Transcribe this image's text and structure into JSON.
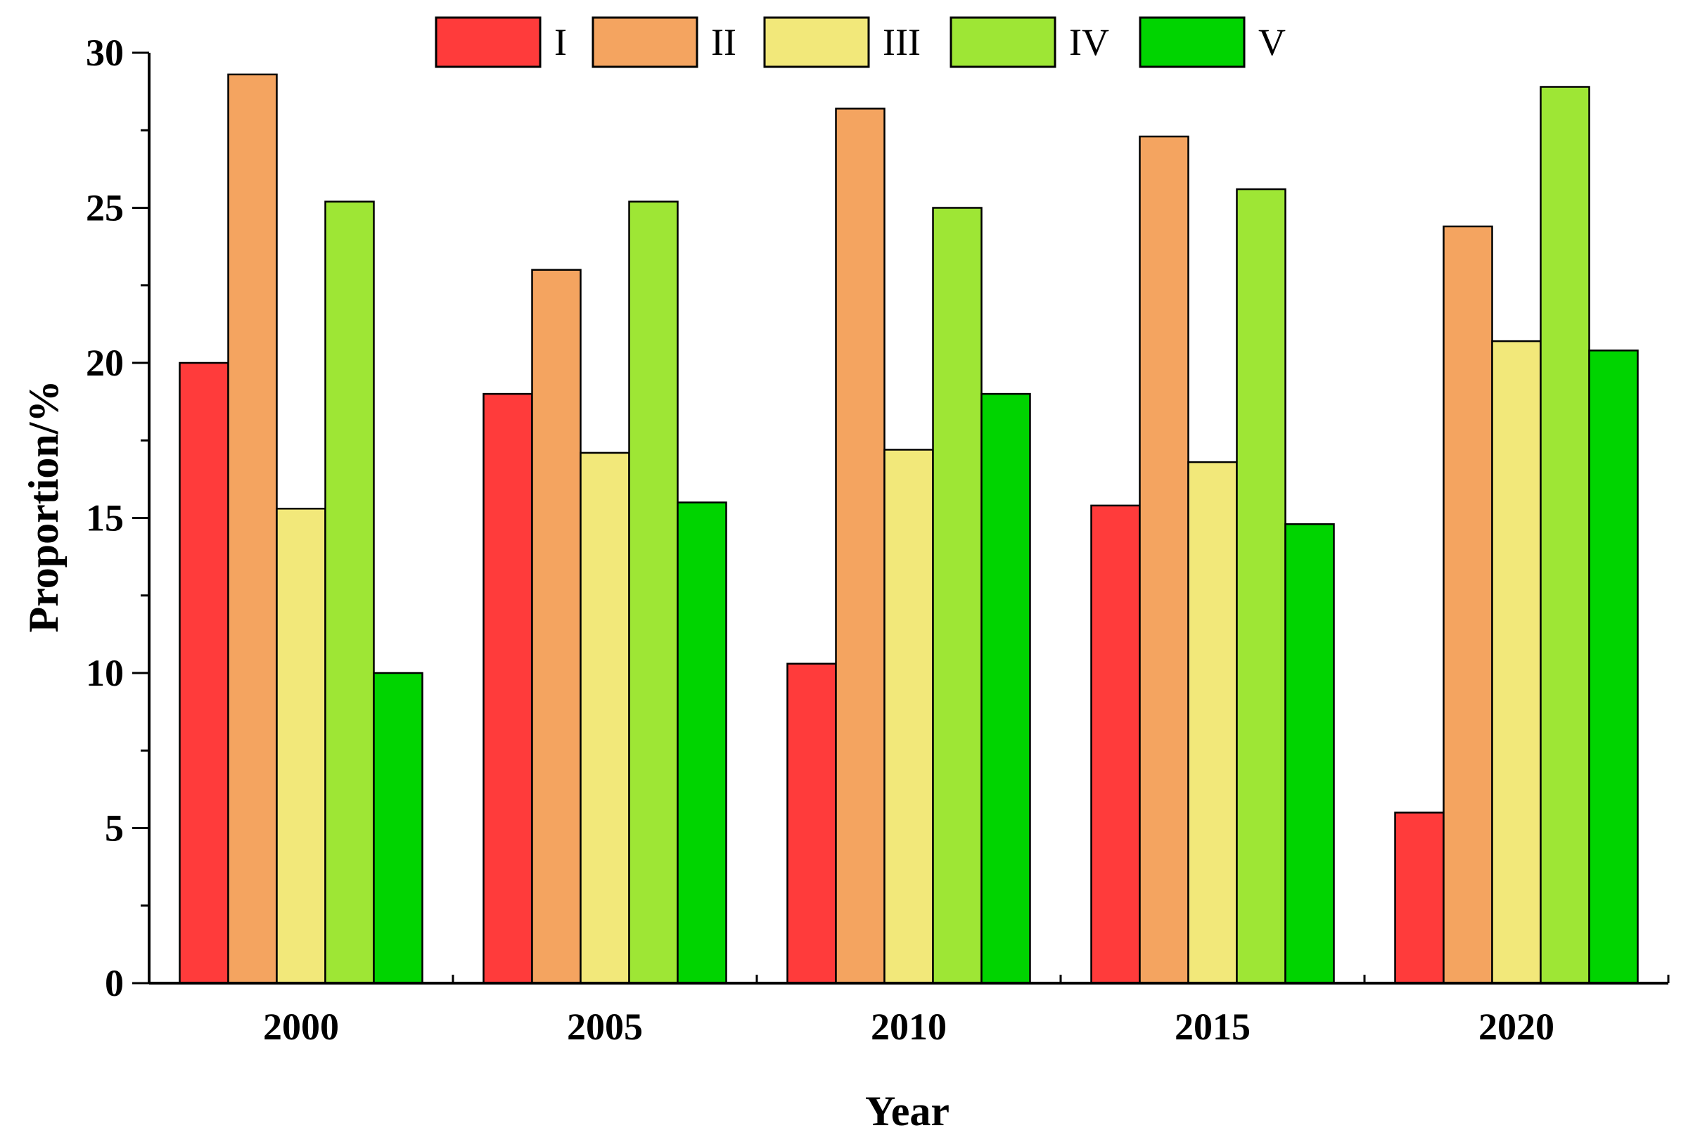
{
  "chart_data": {
    "type": "bar",
    "title": "",
    "xlabel": "Year",
    "ylabel": "Proportion/%",
    "ylim": [
      0,
      30
    ],
    "yticks": [
      0,
      5,
      10,
      15,
      20,
      25,
      30
    ],
    "categories": [
      "2000",
      "2005",
      "2010",
      "2015",
      "2020"
    ],
    "legend_position": "top",
    "series": [
      {
        "name": "I",
        "color": "#ff3b3b",
        "values": [
          20.0,
          19.0,
          10.3,
          15.4,
          5.5
        ]
      },
      {
        "name": "II",
        "color": "#f4a460",
        "values": [
          29.3,
          23.0,
          28.2,
          27.3,
          24.4
        ]
      },
      {
        "name": "III",
        "color": "#f2e87a",
        "values": [
          15.3,
          17.1,
          17.2,
          16.8,
          20.7
        ]
      },
      {
        "name": "IV",
        "color": "#9ee635",
        "values": [
          25.2,
          25.2,
          25.0,
          25.6,
          28.9
        ]
      },
      {
        "name": "V",
        "color": "#00d400",
        "values": [
          10.0,
          15.5,
          19.0,
          14.8,
          20.4
        ]
      }
    ]
  }
}
